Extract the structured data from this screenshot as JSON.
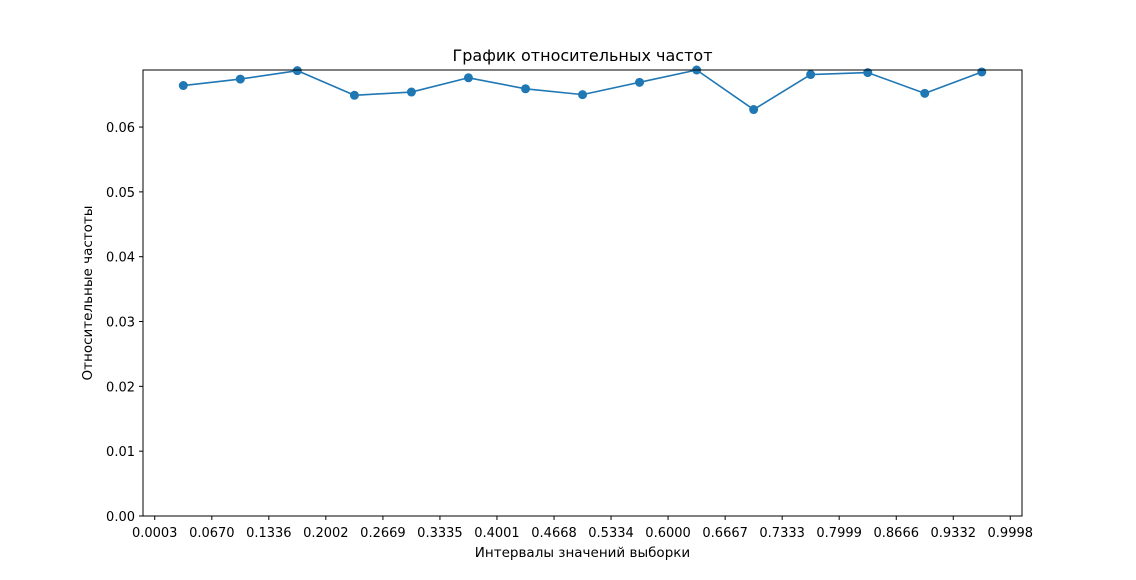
{
  "chart_data": {
    "type": "line",
    "title": "График относительных частот",
    "xlabel": "Интервалы значений выборки",
    "ylabel": "Относительные частоты",
    "xlim": [
      -0.0134,
      1.0135
    ],
    "ylim": [
      0.0,
      0.0688
    ],
    "x_ticks": [
      0.0003,
      0.067,
      0.1336,
      0.2002,
      0.2669,
      0.3335,
      0.4001,
      0.4668,
      0.5334,
      0.6,
      0.6667,
      0.7333,
      0.7999,
      0.8666,
      0.9332,
      0.9998
    ],
    "x_tick_labels": [
      "0.0003",
      "0.0670",
      "0.1336",
      "0.2002",
      "0.2669",
      "0.3335",
      "0.4001",
      "0.4668",
      "0.5334",
      "0.6000",
      "0.6667",
      "0.7333",
      "0.7999",
      "0.8666",
      "0.9332",
      "0.9998"
    ],
    "y_ticks": [
      0.0,
      0.01,
      0.02,
      0.03,
      0.04,
      0.05,
      0.06
    ],
    "y_tick_labels": [
      "0.00",
      "0.01",
      "0.02",
      "0.03",
      "0.04",
      "0.05",
      "0.06"
    ],
    "grid": false,
    "series": [
      {
        "color": "#1f77b4",
        "marker": "circle",
        "x": [
          0.0337,
          0.1003,
          0.1669,
          0.2336,
          0.3002,
          0.3668,
          0.4335,
          0.5001,
          0.5667,
          0.6334,
          0.7,
          0.7666,
          0.8333,
          0.8999,
          0.9665
        ],
        "y": [
          0.0664,
          0.0674,
          0.0687,
          0.0649,
          0.0654,
          0.0676,
          0.0659,
          0.065,
          0.0669,
          0.0688,
          0.0627,
          0.0681,
          0.0684,
          0.0652,
          0.0685
        ]
      }
    ]
  }
}
